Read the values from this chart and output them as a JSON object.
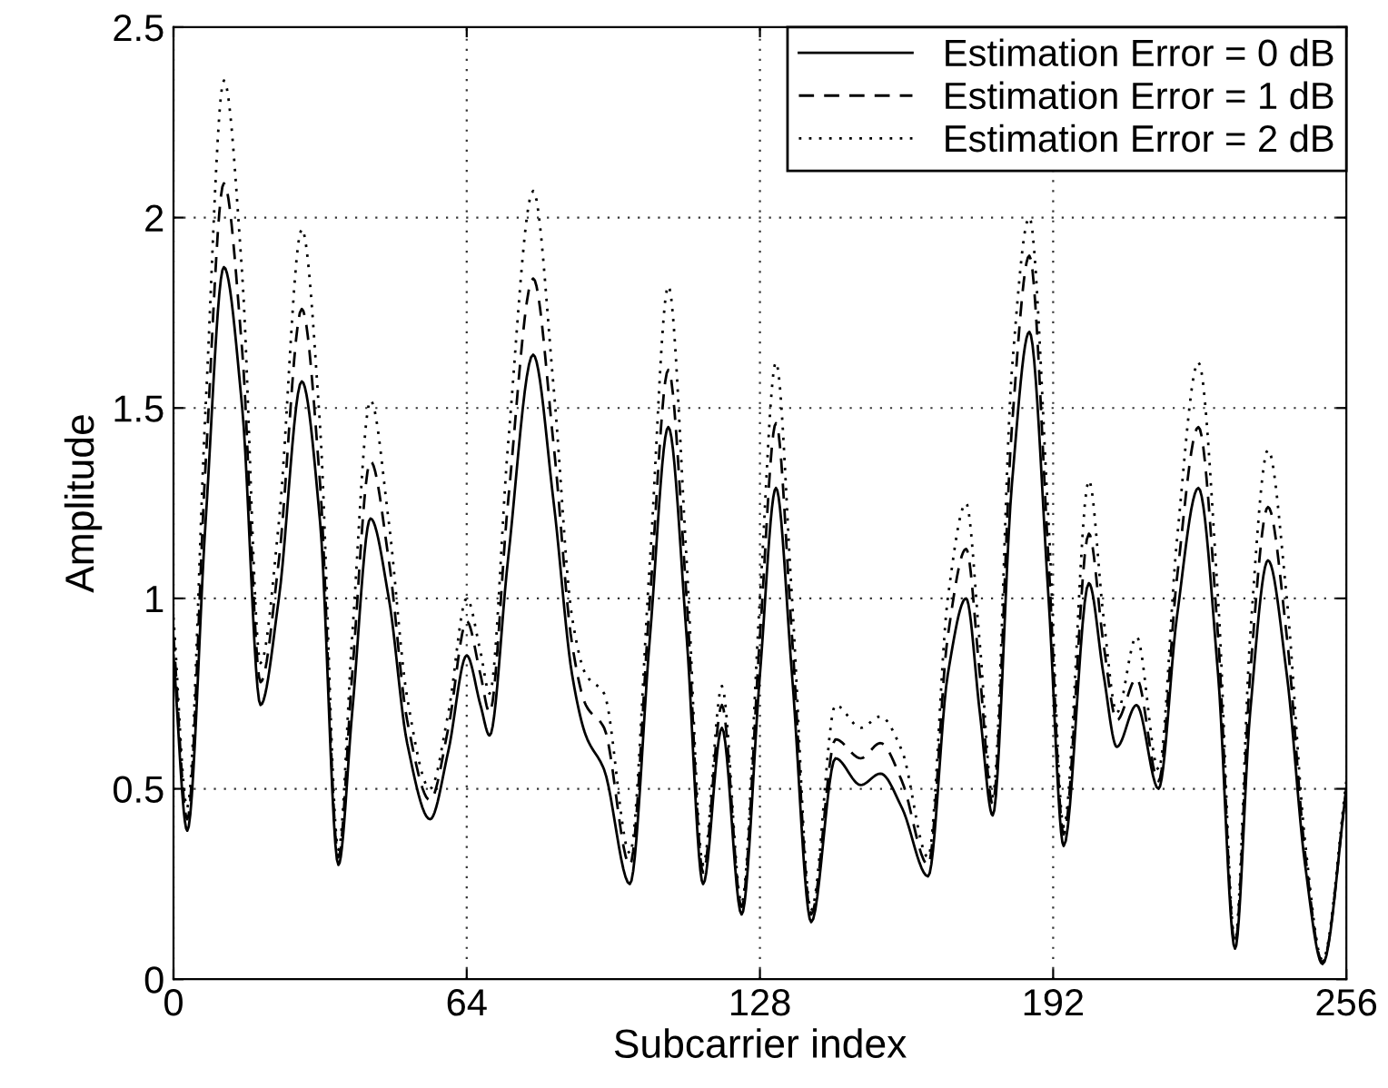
{
  "chart_data": {
    "type": "line",
    "xlabel": "Subcarrier index",
    "ylabel": "Amplitude",
    "x": [
      0,
      3,
      7,
      11,
      15,
      19,
      23,
      28,
      32,
      36,
      39,
      43,
      47,
      51,
      56,
      60,
      64,
      67,
      69,
      73,
      78.5,
      83,
      87,
      90,
      94,
      99.6,
      104,
      108,
      112,
      115.6,
      119.7,
      124,
      128,
      131.5,
      135,
      139.2,
      144.5,
      150,
      154.3,
      159,
      164.7,
      169,
      173,
      176,
      178.8,
      183,
      186.8,
      191,
      194.3,
      199.8,
      203,
      205.9,
      210.2,
      215,
      219,
      223.7,
      228,
      231.7,
      235,
      238.9,
      243,
      247,
      250.8,
      256
    ],
    "series": [
      {
        "name": "Estimation Error = 0 dB",
        "color": "#000000",
        "line_style": "solid",
        "values": [
          0.85,
          0.39,
          1.2,
          1.87,
          1.5,
          0.72,
          1.0,
          1.57,
          1.2,
          0.3,
          0.7,
          1.21,
          1.0,
          0.62,
          0.42,
          0.6,
          0.85,
          0.72,
          0.64,
          1.1,
          1.64,
          1.25,
          0.8,
          0.64,
          0.55,
          0.25,
          0.9,
          1.45,
          0.9,
          0.25,
          0.66,
          0.17,
          0.8,
          1.29,
          0.8,
          0.15,
          0.58,
          0.51,
          0.54,
          0.45,
          0.27,
          0.8,
          1.0,
          0.7,
          0.43,
          1.3,
          1.7,
          1.0,
          0.35,
          1.04,
          0.8,
          0.61,
          0.72,
          0.5,
          0.95,
          1.29,
          0.8,
          0.08,
          0.7,
          1.1,
          0.8,
          0.3,
          0.04,
          0.5
        ]
      },
      {
        "name": "Estimation Error = 1 dB",
        "color": "#000000",
        "line_style": "dashed",
        "values": [
          0.9,
          0.42,
          1.35,
          2.09,
          1.65,
          0.78,
          1.1,
          1.76,
          1.3,
          0.32,
          0.8,
          1.36,
          1.1,
          0.68,
          0.47,
          0.66,
          0.94,
          0.8,
          0.7,
          1.25,
          1.84,
          1.4,
          0.88,
          0.72,
          0.66,
          0.3,
          1.0,
          1.6,
          1.0,
          0.28,
          0.72,
          0.19,
          0.9,
          1.46,
          0.9,
          0.17,
          0.63,
          0.58,
          0.62,
          0.52,
          0.3,
          0.9,
          1.13,
          0.8,
          0.46,
          1.45,
          1.9,
          1.1,
          0.38,
          1.17,
          0.88,
          0.68,
          0.79,
          0.52,
          1.05,
          1.45,
          0.9,
          0.09,
          0.8,
          1.24,
          0.9,
          0.33,
          0.045,
          0.5
        ]
      },
      {
        "name": "Estimation Error = 2 dB",
        "color": "#000000",
        "line_style": "dotted",
        "values": [
          0.95,
          0.45,
          1.5,
          2.36,
          1.85,
          0.83,
          1.2,
          1.97,
          1.45,
          0.34,
          0.9,
          1.52,
          1.2,
          0.74,
          0.5,
          0.7,
          1.0,
          0.86,
          0.75,
          1.4,
          2.07,
          1.55,
          0.95,
          0.8,
          0.75,
          0.33,
          1.1,
          1.82,
          1.1,
          0.3,
          0.77,
          0.2,
          1.0,
          1.62,
          1.0,
          0.18,
          0.72,
          0.66,
          0.69,
          0.6,
          0.32,
          1.0,
          1.25,
          0.88,
          0.48,
          1.6,
          2.0,
          1.2,
          0.4,
          1.31,
          0.95,
          0.7,
          0.9,
          0.55,
          1.15,
          1.62,
          1.0,
          0.1,
          0.9,
          1.39,
          1.0,
          0.36,
          0.05,
          0.52
        ]
      }
    ],
    "xlim": [
      0,
      256
    ],
    "xticks": [
      0,
      64,
      128,
      192,
      256
    ],
    "ylim": [
      0,
      2.5
    ],
    "yticks": [
      0,
      {
        "value": 0.5,
        "label": "0.5"
      },
      1,
      {
        "value": 1.5,
        "label": "1.5"
      },
      2,
      {
        "value": 2.5,
        "label": "2.5"
      }
    ],
    "grid": true,
    "legend": "top right",
    "marker": "none"
  }
}
